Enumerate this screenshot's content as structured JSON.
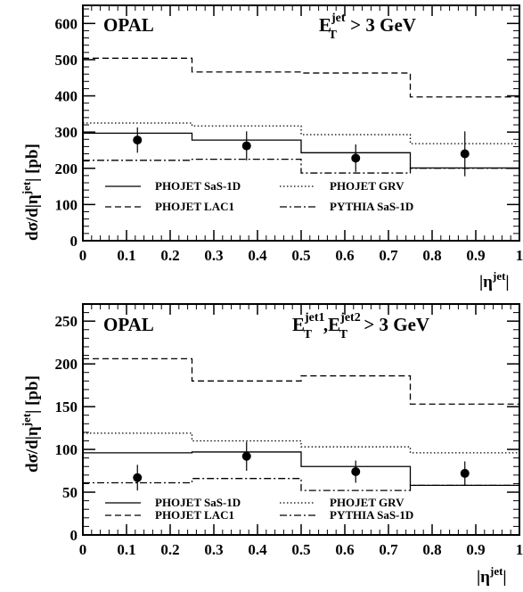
{
  "chart_data": [
    {
      "type": "step",
      "label": "OPAL",
      "cut": {
        "main": "E",
        "sub": "T",
        "sup": "jet",
        "tail": " > 3 GeV"
      },
      "ylabel": {
        "pre": "dσ/d|η",
        "sup": "jet",
        "post": "| [pb]"
      },
      "xlabel": {
        "pre": "|η",
        "sup": "jet",
        "post": "|"
      },
      "xlim": [
        0,
        1
      ],
      "ylim": [
        0,
        650
      ],
      "xticks": [
        0,
        0.1,
        0.2,
        0.3,
        0.4,
        0.5,
        0.6,
        0.7,
        0.8,
        0.9,
        1
      ],
      "xtick_labels": [
        "0",
        "0.1",
        "0.2",
        "0.3",
        "0.4",
        "0.5",
        "0.6",
        "0.7",
        "0.8",
        "0.9",
        "1"
      ],
      "yticks": [
        0,
        100,
        200,
        300,
        400,
        500,
        600
      ],
      "ytick_labels": [
        "0",
        "100",
        "200",
        "300",
        "400",
        "500",
        "600"
      ],
      "bin_edges": [
        0,
        0.25,
        0.5,
        0.75,
        1.0
      ],
      "series": [
        {
          "name": "PHOJET SaS-1D",
          "style": "solid",
          "values": [
            297,
            278,
            243,
            201
          ]
        },
        {
          "name": "PHOJET LAC1",
          "style": "dashed",
          "values": [
            504,
            466,
            463,
            397
          ]
        },
        {
          "name": "PHOJET GRV",
          "style": "dotted",
          "values": [
            325,
            317,
            293,
            268
          ]
        },
        {
          "name": "PYTHIA SaS-1D",
          "style": "dashdot",
          "values": [
            222,
            225,
            187,
            200
          ]
        }
      ],
      "data_points": {
        "x": [
          0.125,
          0.375,
          0.625,
          0.875
        ],
        "y": [
          278,
          262,
          228,
          240
        ],
        "err": [
          35,
          40,
          38,
          62
        ]
      }
    },
    {
      "type": "step",
      "label": "OPAL",
      "cut": {
        "e1": "E",
        "sub1": "T",
        "sup1": "jet1",
        "sep": ",",
        "e2": "E",
        "sub2": "T",
        "sup2": "jet2",
        "tail": " > 3 GeV"
      },
      "ylabel": {
        "pre": "dσ/d|η",
        "sup": "jet",
        "post": "| [pb]"
      },
      "xlabel": {
        "pre": "|η",
        "sup": "jet",
        "post": "|"
      },
      "xlim": [
        0,
        1
      ],
      "ylim": [
        0,
        270
      ],
      "xticks": [
        0,
        0.1,
        0.2,
        0.3,
        0.4,
        0.5,
        0.6,
        0.7,
        0.8,
        0.9,
        1
      ],
      "xtick_labels": [
        "0",
        "0.1",
        "0.2",
        "0.3",
        "0.4",
        "0.5",
        "0.6",
        "0.7",
        "0.8",
        "0.9",
        "1"
      ],
      "yticks": [
        0,
        50,
        100,
        150,
        200,
        250
      ],
      "ytick_labels": [
        "0",
        "50",
        "100",
        "150",
        "200",
        "250"
      ],
      "bin_edges": [
        0,
        0.25,
        0.5,
        0.75,
        1.0
      ],
      "series": [
        {
          "name": "PHOJET SaS-1D",
          "style": "solid",
          "values": [
            96,
            97,
            80,
            58
          ]
        },
        {
          "name": "PHOJET LAC1",
          "style": "dashed",
          "values": [
            206,
            180,
            186,
            153
          ]
        },
        {
          "name": "PHOJET GRV",
          "style": "dotted",
          "values": [
            119,
            110,
            103,
            96
          ]
        },
        {
          "name": "PYTHIA SaS-1D",
          "style": "dashdot",
          "values": [
            61,
            66,
            52,
            58
          ]
        }
      ],
      "data_points": {
        "x": [
          0.125,
          0.375,
          0.625,
          0.875
        ],
        "y": [
          67,
          92,
          74,
          72
        ],
        "err": [
          15,
          17,
          13,
          14
        ]
      }
    }
  ]
}
